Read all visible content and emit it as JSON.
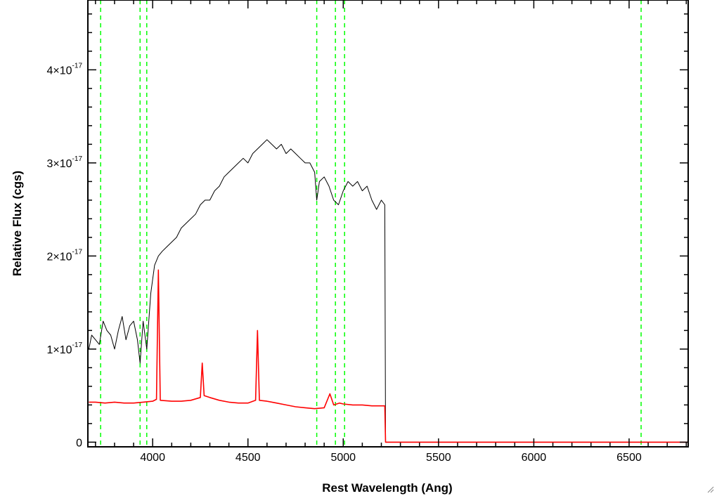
{
  "chart_data": {
    "type": "line",
    "xlabel": "Rest Wavelength (Ang)",
    "ylabel": "Relative Flux (cgs)",
    "xlim": [
      3660,
      6810
    ],
    "ylim": [
      -5e-19,
      4.75e-17
    ],
    "x_ticks": [
      4000,
      4500,
      5000,
      5500,
      6000,
      6500
    ],
    "x_tick_labels": [
      "4000",
      "4500",
      "5000",
      "5500",
      "6000",
      "6500"
    ],
    "x_minor_step": 100,
    "y_ticks": [
      {
        "value": 0,
        "mantissa": "0",
        "exponent": ""
      },
      {
        "value": 1e-17,
        "mantissa": "1×10",
        "exponent": "-17"
      },
      {
        "value": 2e-17,
        "mantissa": "2×10",
        "exponent": "-17"
      },
      {
        "value": 3e-17,
        "mantissa": "3×10",
        "exponent": "-17"
      },
      {
        "value": 4e-17,
        "mantissa": "4×10",
        "exponent": "-17"
      }
    ],
    "y_minor_step": 2e-18,
    "reference_lines_x": [
      3727,
      3934,
      3969,
      4861,
      4959,
      5007,
      6563
    ],
    "colors": {
      "spectrum": "#000000",
      "error": "#ff0000",
      "reference": "#00ff00",
      "axes": "#000000"
    },
    "series": [
      {
        "color": "#000000",
        "x": [
          3665,
          3680,
          3700,
          3720,
          3740,
          3760,
          3780,
          3800,
          3820,
          3840,
          3860,
          3880,
          3900,
          3920,
          3934,
          3950,
          3969,
          3990,
          4010,
          4030,
          4050,
          4075,
          4100,
          4125,
          4150,
          4175,
          4200,
          4225,
          4250,
          4275,
          4300,
          4325,
          4350,
          4375,
          4400,
          4425,
          4450,
          4475,
          4500,
          4525,
          4550,
          4575,
          4600,
          4625,
          4650,
          4675,
          4700,
          4725,
          4750,
          4775,
          4800,
          4825,
          4850,
          4861,
          4875,
          4900,
          4925,
          4950,
          4975,
          5000,
          5025,
          5050,
          5075,
          5100,
          5125,
          5150,
          5175,
          5200,
          5218,
          5222,
          5300,
          5500,
          5800,
          6100,
          6400,
          6700,
          6810
        ],
        "y": [
          1e-17,
          1.15e-17,
          1.1e-17,
          1.05e-17,
          1.3e-17,
          1.2e-17,
          1.15e-17,
          1e-17,
          1.2e-17,
          1.35e-17,
          1.1e-17,
          1.25e-17,
          1.3e-17,
          1.1e-17,
          8.5e-18,
          1.3e-17,
          1e-17,
          1.6e-17,
          1.9e-17,
          2e-17,
          2.05e-17,
          2.1e-17,
          2.15e-17,
          2.2e-17,
          2.3e-17,
          2.35e-17,
          2.4e-17,
          2.45e-17,
          2.55e-17,
          2.6e-17,
          2.6e-17,
          2.7e-17,
          2.75e-17,
          2.85e-17,
          2.9e-17,
          2.95e-17,
          3e-17,
          3.05e-17,
          3e-17,
          3.1e-17,
          3.15e-17,
          3.2e-17,
          3.25e-17,
          3.2e-17,
          3.15e-17,
          3.2e-17,
          3.1e-17,
          3.15e-17,
          3.1e-17,
          3.05e-17,
          3e-17,
          3e-17,
          2.9e-17,
          2.6e-17,
          2.8e-17,
          2.85e-17,
          2.75e-17,
          2.6e-17,
          2.55e-17,
          2.7e-17,
          2.8e-17,
          2.75e-17,
          2.8e-17,
          2.7e-17,
          2.75e-17,
          2.6e-17,
          2.5e-17,
          2.6e-17,
          2.55e-17,
          0,
          0,
          0,
          0,
          0,
          0,
          0,
          0
        ]
      },
      {
        "color": "#ff0000",
        "x": [
          3665,
          3700,
          3750,
          3800,
          3850,
          3900,
          3950,
          4000,
          4020,
          4030,
          4040,
          4100,
          4150,
          4200,
          4250,
          4260,
          4270,
          4300,
          4350,
          4400,
          4450,
          4500,
          4540,
          4550,
          4560,
          4600,
          4650,
          4700,
          4750,
          4800,
          4850,
          4900,
          4930,
          4950,
          4980,
          5000,
          5050,
          5100,
          5150,
          5200,
          5218,
          5222,
          5300,
          5600,
          6000,
          6400,
          6810
        ],
        "y": [
          4.3e-18,
          4.3e-18,
          4.2e-18,
          4.3e-18,
          4.2e-18,
          4.2e-18,
          4.3e-18,
          4.4e-18,
          4.6e-18,
          1.85e-17,
          4.5e-18,
          4.4e-18,
          4.4e-18,
          4.5e-18,
          4.8e-18,
          8.5e-18,
          5e-18,
          4.8e-18,
          4.5e-18,
          4.3e-18,
          4.2e-18,
          4.2e-18,
          4.5e-18,
          1.2e-17,
          4.5e-18,
          4.4e-18,
          4.2e-18,
          4e-18,
          3.8e-18,
          3.7e-18,
          3.6e-18,
          3.7e-18,
          5.2e-18,
          4e-18,
          4.2e-18,
          4.1e-18,
          4e-18,
          4e-18,
          3.9e-18,
          3.9e-18,
          3.9e-18,
          0,
          0,
          0,
          0,
          0,
          0
        ]
      }
    ]
  }
}
